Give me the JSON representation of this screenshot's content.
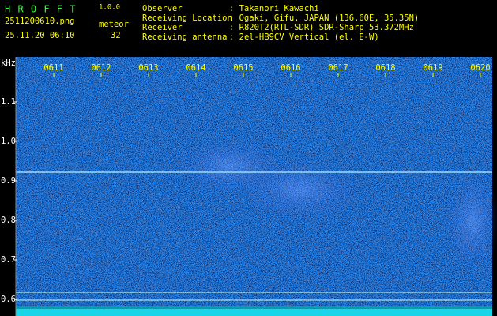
{
  "header": {
    "app": "H R O F F T",
    "version": "1.0.0",
    "file": "2511200610.png",
    "datetime": "25.11.20 06:10",
    "count_label": "meteor",
    "count": "32"
  },
  "info": [
    {
      "label": "Observer",
      "value": ": Takanori Kawachi"
    },
    {
      "label": "Receiving Location",
      "value": ": Ogaki, Gifu, JAPAN (136.60E, 35.35N)"
    },
    {
      "label": "Receiver",
      "value": ": R820T2(RTL-SDR) SDR-Sharp 53.372MHz"
    },
    {
      "label": "Receiving antenna",
      "value": ": 2el-HB9CV Vertical (el. E-W)"
    }
  ],
  "y_axis": {
    "unit": "kHz",
    "labels": [
      "1.1",
      "1.0",
      "0.9",
      "0.8",
      "0.7",
      "0.6"
    ]
  },
  "time_labels": [
    "0611",
    "0612",
    "0613",
    "0614",
    "0615",
    "0616",
    "0617",
    "0618",
    "0619",
    "0620"
  ]
}
